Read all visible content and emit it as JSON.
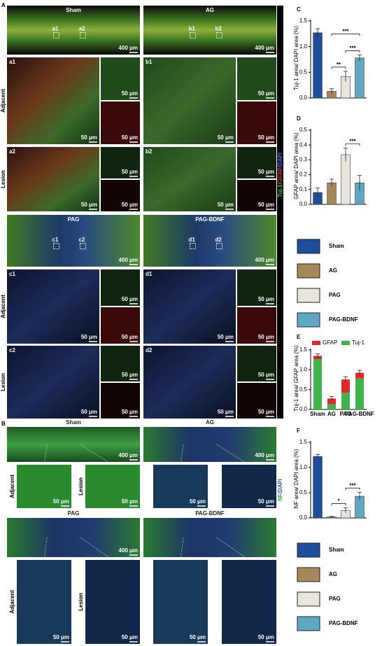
{
  "panel_A": {
    "label": "A",
    "stain": [
      "Tuj-1/",
      "GFAP",
      "/DAPI"
    ],
    "blocks": [
      {
        "row_labels": [
          "Adjacent",
          "Lesion"
        ],
        "groups": [
          {
            "title": "Sham",
            "boxes": [
              "a1",
              "a2"
            ],
            "scale": "400 μm",
            "rows": [
              {
                "label": "a1",
                "scales": [
                  "50 μm",
                  "50 μm",
                  "50 μm"
                ]
              },
              {
                "label": "a2",
                "scales": [
                  "50 μm",
                  "50 μm",
                  "50 μm"
                ]
              }
            ]
          },
          {
            "title": "AG",
            "boxes": [
              "b1",
              "b2"
            ],
            "scale": "400 μm",
            "rows": [
              {
                "label": "b1",
                "scales": [
                  "50 μm",
                  "50 μm",
                  "50 μm"
                ]
              },
              {
                "label": "b2",
                "scales": [
                  "50 μm",
                  "50 μm",
                  "50 μm"
                ]
              }
            ]
          }
        ]
      },
      {
        "row_labels": [
          "Adjacent",
          "Lesion"
        ],
        "groups": [
          {
            "title": "PAG",
            "boxes": [
              "c1",
              "c2"
            ],
            "scale": "400 μm",
            "rows": [
              {
                "label": "c1",
                "scales": [
                  "50 μm",
                  "50 μm",
                  "50 μm"
                ]
              },
              {
                "label": "c2",
                "scales": [
                  "50 μm",
                  "50 μm",
                  "50 μm"
                ]
              }
            ]
          },
          {
            "title": "PAG-BDNF",
            "boxes": [
              "d1",
              "d2"
            ],
            "scale": "400 μm",
            "rows": [
              {
                "label": "d1",
                "scales": [
                  "50 μm",
                  "50 μm",
                  "50 μm"
                ]
              },
              {
                "label": "d2",
                "scales": [
                  "50 μm",
                  "50 μm",
                  "50 μm"
                ]
              }
            ]
          }
        ]
      }
    ]
  },
  "panel_B": {
    "label": "B",
    "stain": [
      "NF",
      "/DAPI"
    ],
    "blocks": [
      {
        "groups": [
          {
            "title": "Sham",
            "scale": "400 μm",
            "crops": [
              {
                "label": "Adjacent",
                "scale": "50 μm"
              },
              {
                "label": "Lesion",
                "scale": "50 μm"
              }
            ]
          },
          {
            "title": "AG",
            "scale": "400 μm",
            "crops": [
              {
                "scale": "50 μm"
              },
              {
                "scale": "50 μm"
              }
            ]
          }
        ]
      },
      {
        "groups": [
          {
            "title": "PAG",
            "scale": "400 μm",
            "crops": [
              {
                "label": "Adjacent",
                "scale": "50 μm"
              },
              {
                "label": "Lesion",
                "scale": "50 μm"
              }
            ]
          },
          {
            "title": "PAG-BDNF",
            "crops": [
              {
                "scale": "50 μm"
              },
              {
                "scale": "50 μm"
              }
            ]
          }
        ]
      }
    ]
  },
  "chart_data": [
    {
      "type": "bar",
      "panel": "C",
      "ylabel": "Tuj-1 area/ DAPI area (%)",
      "categories": [
        "Sham",
        "AG",
        "PAG",
        "PAG-BDNF"
      ],
      "colors": [
        "#1f4e9c",
        "#a6875a",
        "#e9e5dc",
        "#5ea8c4"
      ],
      "values": [
        1.27,
        0.13,
        0.42,
        0.78
      ],
      "errors": [
        0.08,
        0.05,
        0.1,
        0.06
      ],
      "ylim": [
        0,
        1.5
      ],
      "yticks": [
        {
          "value": 0,
          "label": "0.0"
        },
        0.5,
        {
          "value": 1,
          "label": "1.0"
        },
        1.5
      ],
      "annotations": [
        {
          "label": "**",
          "between": [
            1,
            2
          ]
        },
        {
          "label": "***",
          "between": [
            2,
            3
          ]
        },
        {
          "label": "***",
          "between": [
            1,
            3
          ]
        }
      ]
    },
    {
      "type": "bar",
      "panel": "D",
      "ylabel": "GFAP area/ DAPI area (%)",
      "categories": [
        "Sham",
        "AG",
        "PAG",
        "PAG-BDNF"
      ],
      "colors": [
        "#1f4e9c",
        "#a6875a",
        "#e9e5dc",
        "#5ea8c4"
      ],
      "values": [
        0.08,
        0.145,
        0.335,
        0.145
      ],
      "errors": [
        0.03,
        0.025,
        0.045,
        0.05
      ],
      "ylim": [
        0,
        0.5
      ],
      "yticks": [
        {
          "value": 0,
          "label": "0.0"
        },
        0.1,
        0.2,
        0.3,
        0.4,
        0.5
      ],
      "annotations": [
        {
          "label": "***",
          "between": [
            2,
            3
          ]
        }
      ]
    },
    {
      "type": "stacked_bar",
      "panel": "E",
      "ylabel": "Tuj-1 area/ GFAP area (%)",
      "categories": [
        "Sham",
        "AG",
        "PAG",
        "PAG-BDNF"
      ],
      "series": [
        {
          "name": "Tuj-1",
          "color": "#3db54a",
          "values": [
            1.27,
            0.13,
            0.42,
            0.78
          ]
        },
        {
          "name": "GFAP",
          "color": "#e3262a",
          "values": [
            0.08,
            0.145,
            0.335,
            0.145
          ],
          "errors": [
            0.05,
            0.05,
            0.07,
            0.06
          ]
        }
      ],
      "ylim": [
        0,
        1.5
      ],
      "yticks": [
        {
          "value": 0,
          "label": "0.0"
        },
        0.5,
        {
          "value": 1,
          "label": "1.0"
        },
        1.5
      ]
    },
    {
      "type": "bar",
      "panel": "F",
      "ylabel": "NF area/ DAPI area (%)",
      "categories": [
        "Sham",
        "AG",
        "PAG",
        "PAG-BDNF"
      ],
      "colors": [
        "#1f4e9c",
        "#a6875a",
        "#e9e5dc",
        "#5ea8c4"
      ],
      "values": [
        1.22,
        0.02,
        0.15,
        0.43
      ],
      "errors": [
        0.04,
        0.01,
        0.05,
        0.08
      ],
      "ylim": [
        0,
        1.5
      ],
      "yticks": [
        {
          "value": 0,
          "label": "0.0"
        },
        0.5,
        {
          "value": 1,
          "label": "1.0"
        },
        1.5
      ],
      "annotations": [
        {
          "label": "*",
          "between": [
            1,
            2
          ]
        },
        {
          "label": "***",
          "between": [
            2,
            3
          ]
        }
      ]
    }
  ]
}
